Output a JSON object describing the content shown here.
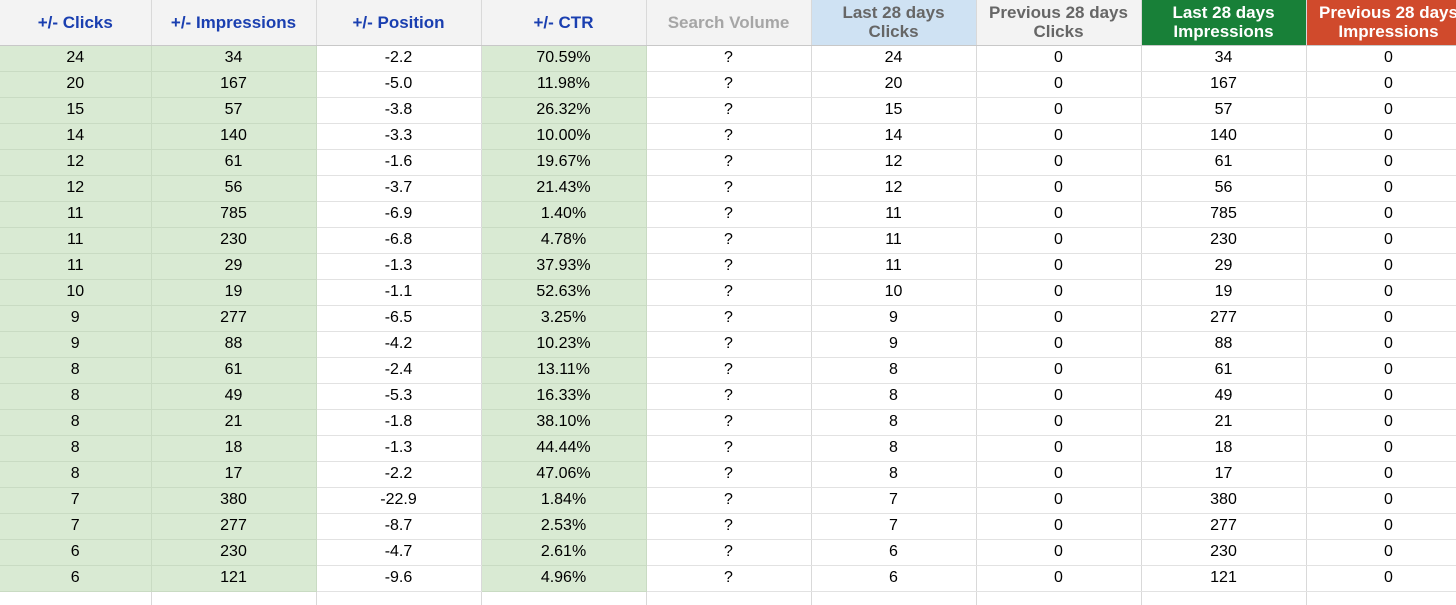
{
  "columns": [
    {
      "label": "+/- Clicks",
      "bg": "#f3f3f3",
      "color": "#1a3fb0",
      "highlight": true
    },
    {
      "label": "+/- Impressions",
      "bg": "#f3f3f3",
      "color": "#1a3fb0",
      "highlight": true
    },
    {
      "label": "+/- Position",
      "bg": "#f3f3f3",
      "color": "#1a3fb0",
      "highlight": false
    },
    {
      "label": "+/- CTR",
      "bg": "#f3f3f3",
      "color": "#1a3fb0",
      "highlight": true
    },
    {
      "label": "Search Volume",
      "bg": "#f3f3f3",
      "color": "#a6a6a6",
      "highlight": false
    },
    {
      "label": "Last 28 days Clicks",
      "bg": "#cfe2f3",
      "color": "#666666",
      "highlight": false
    },
    {
      "label": "Previous 28 days Clicks",
      "bg": "#f3f3f3",
      "color": "#666666",
      "highlight": false
    },
    {
      "label": "Last 28 days Impressions",
      "bg": "#188038",
      "color": "#ffffff",
      "highlight": false
    },
    {
      "label": "Previous 28 days Impressions",
      "bg": "#d04a2c",
      "color": "#ffffff",
      "highlight": false
    }
  ],
  "rows": [
    [
      "24",
      "34",
      "-2.2",
      "70.59%",
      "?",
      "24",
      "0",
      "34",
      "0"
    ],
    [
      "20",
      "167",
      "-5.0",
      "11.98%",
      "?",
      "20",
      "0",
      "167",
      "0"
    ],
    [
      "15",
      "57",
      "-3.8",
      "26.32%",
      "?",
      "15",
      "0",
      "57",
      "0"
    ],
    [
      "14",
      "140",
      "-3.3",
      "10.00%",
      "?",
      "14",
      "0",
      "140",
      "0"
    ],
    [
      "12",
      "61",
      "-1.6",
      "19.67%",
      "?",
      "12",
      "0",
      "61",
      "0"
    ],
    [
      "12",
      "56",
      "-3.7",
      "21.43%",
      "?",
      "12",
      "0",
      "56",
      "0"
    ],
    [
      "11",
      "785",
      "-6.9",
      "1.40%",
      "?",
      "11",
      "0",
      "785",
      "0"
    ],
    [
      "11",
      "230",
      "-6.8",
      "4.78%",
      "?",
      "11",
      "0",
      "230",
      "0"
    ],
    [
      "11",
      "29",
      "-1.3",
      "37.93%",
      "?",
      "11",
      "0",
      "29",
      "0"
    ],
    [
      "10",
      "19",
      "-1.1",
      "52.63%",
      "?",
      "10",
      "0",
      "19",
      "0"
    ],
    [
      "9",
      "277",
      "-6.5",
      "3.25%",
      "?",
      "9",
      "0",
      "277",
      "0"
    ],
    [
      "9",
      "88",
      "-4.2",
      "10.23%",
      "?",
      "9",
      "0",
      "88",
      "0"
    ],
    [
      "8",
      "61",
      "-2.4",
      "13.11%",
      "?",
      "8",
      "0",
      "61",
      "0"
    ],
    [
      "8",
      "49",
      "-5.3",
      "16.33%",
      "?",
      "8",
      "0",
      "49",
      "0"
    ],
    [
      "8",
      "21",
      "-1.8",
      "38.10%",
      "?",
      "8",
      "0",
      "21",
      "0"
    ],
    [
      "8",
      "18",
      "-1.3",
      "44.44%",
      "?",
      "8",
      "0",
      "18",
      "0"
    ],
    [
      "8",
      "17",
      "-2.2",
      "47.06%",
      "?",
      "8",
      "0",
      "17",
      "0"
    ],
    [
      "7",
      "380",
      "-22.9",
      "1.84%",
      "?",
      "7",
      "0",
      "380",
      "0"
    ],
    [
      "7",
      "277",
      "-8.7",
      "2.53%",
      "?",
      "7",
      "0",
      "277",
      "0"
    ],
    [
      "6",
      "230",
      "-4.7",
      "2.61%",
      "?",
      "6",
      "0",
      "230",
      "0"
    ],
    [
      "6",
      "121",
      "-9.6",
      "4.96%",
      "?",
      "6",
      "0",
      "121",
      "0"
    ]
  ],
  "highlight_color": "#d9ead3"
}
